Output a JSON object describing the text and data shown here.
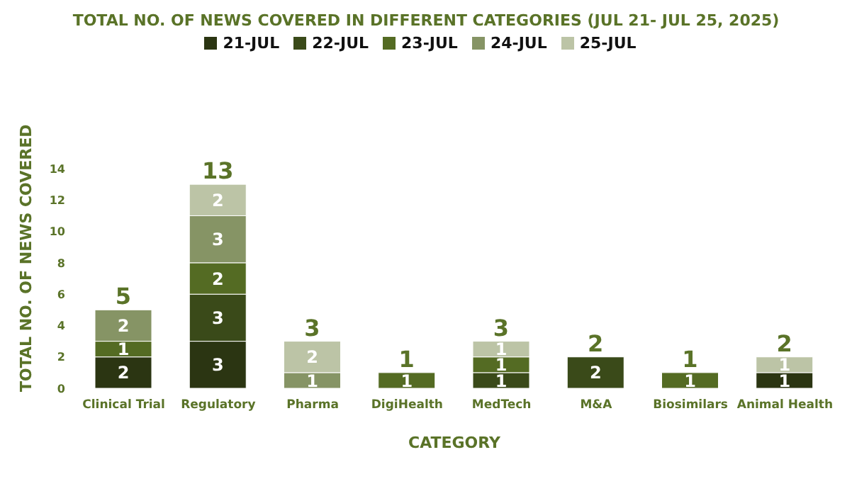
{
  "chart_data": {
    "type": "bar",
    "stacked": true,
    "title": "TOTAL NO. OF NEWS COVERED IN DIFFERENT CATEGORIES (JUL 21- JUL 25, 2025)",
    "xlabel": "CATEGORY",
    "ylabel": "TOTAL  NO. OF NEWS COVERED",
    "categories": [
      "Clinical Trial",
      "Regulatory",
      "Pharma",
      "DigiHealth",
      "MedTech",
      "M&A",
      "Biosimilars",
      "Animal Health"
    ],
    "series": [
      {
        "name": "21-JUL",
        "color": "#2b3512",
        "values": [
          2,
          3,
          null,
          null,
          null,
          null,
          null,
          1
        ]
      },
      {
        "name": "22-JUL",
        "color": "#3a4a19",
        "values": [
          null,
          3,
          null,
          null,
          1,
          2,
          null,
          null
        ]
      },
      {
        "name": "23-JUL",
        "color": "#546b23",
        "values": [
          1,
          2,
          null,
          1,
          1,
          null,
          1,
          null
        ]
      },
      {
        "name": "24-JUL",
        "color": "#869465",
        "values": [
          2,
          3,
          1,
          null,
          null,
          null,
          null,
          null
        ]
      },
      {
        "name": "25-JUL",
        "color": "#bcc4a6",
        "values": [
          null,
          2,
          2,
          null,
          1,
          null,
          null,
          1
        ]
      }
    ],
    "totals": [
      "5",
      "13",
      "3",
      "1",
      "3",
      "2",
      "1",
      "2"
    ],
    "ylim": [
      0,
      14
    ],
    "yticks": [
      0,
      2,
      4,
      6,
      8,
      10,
      12,
      14
    ],
    "grid": false,
    "legend": "top",
    "data_labels": true
  }
}
